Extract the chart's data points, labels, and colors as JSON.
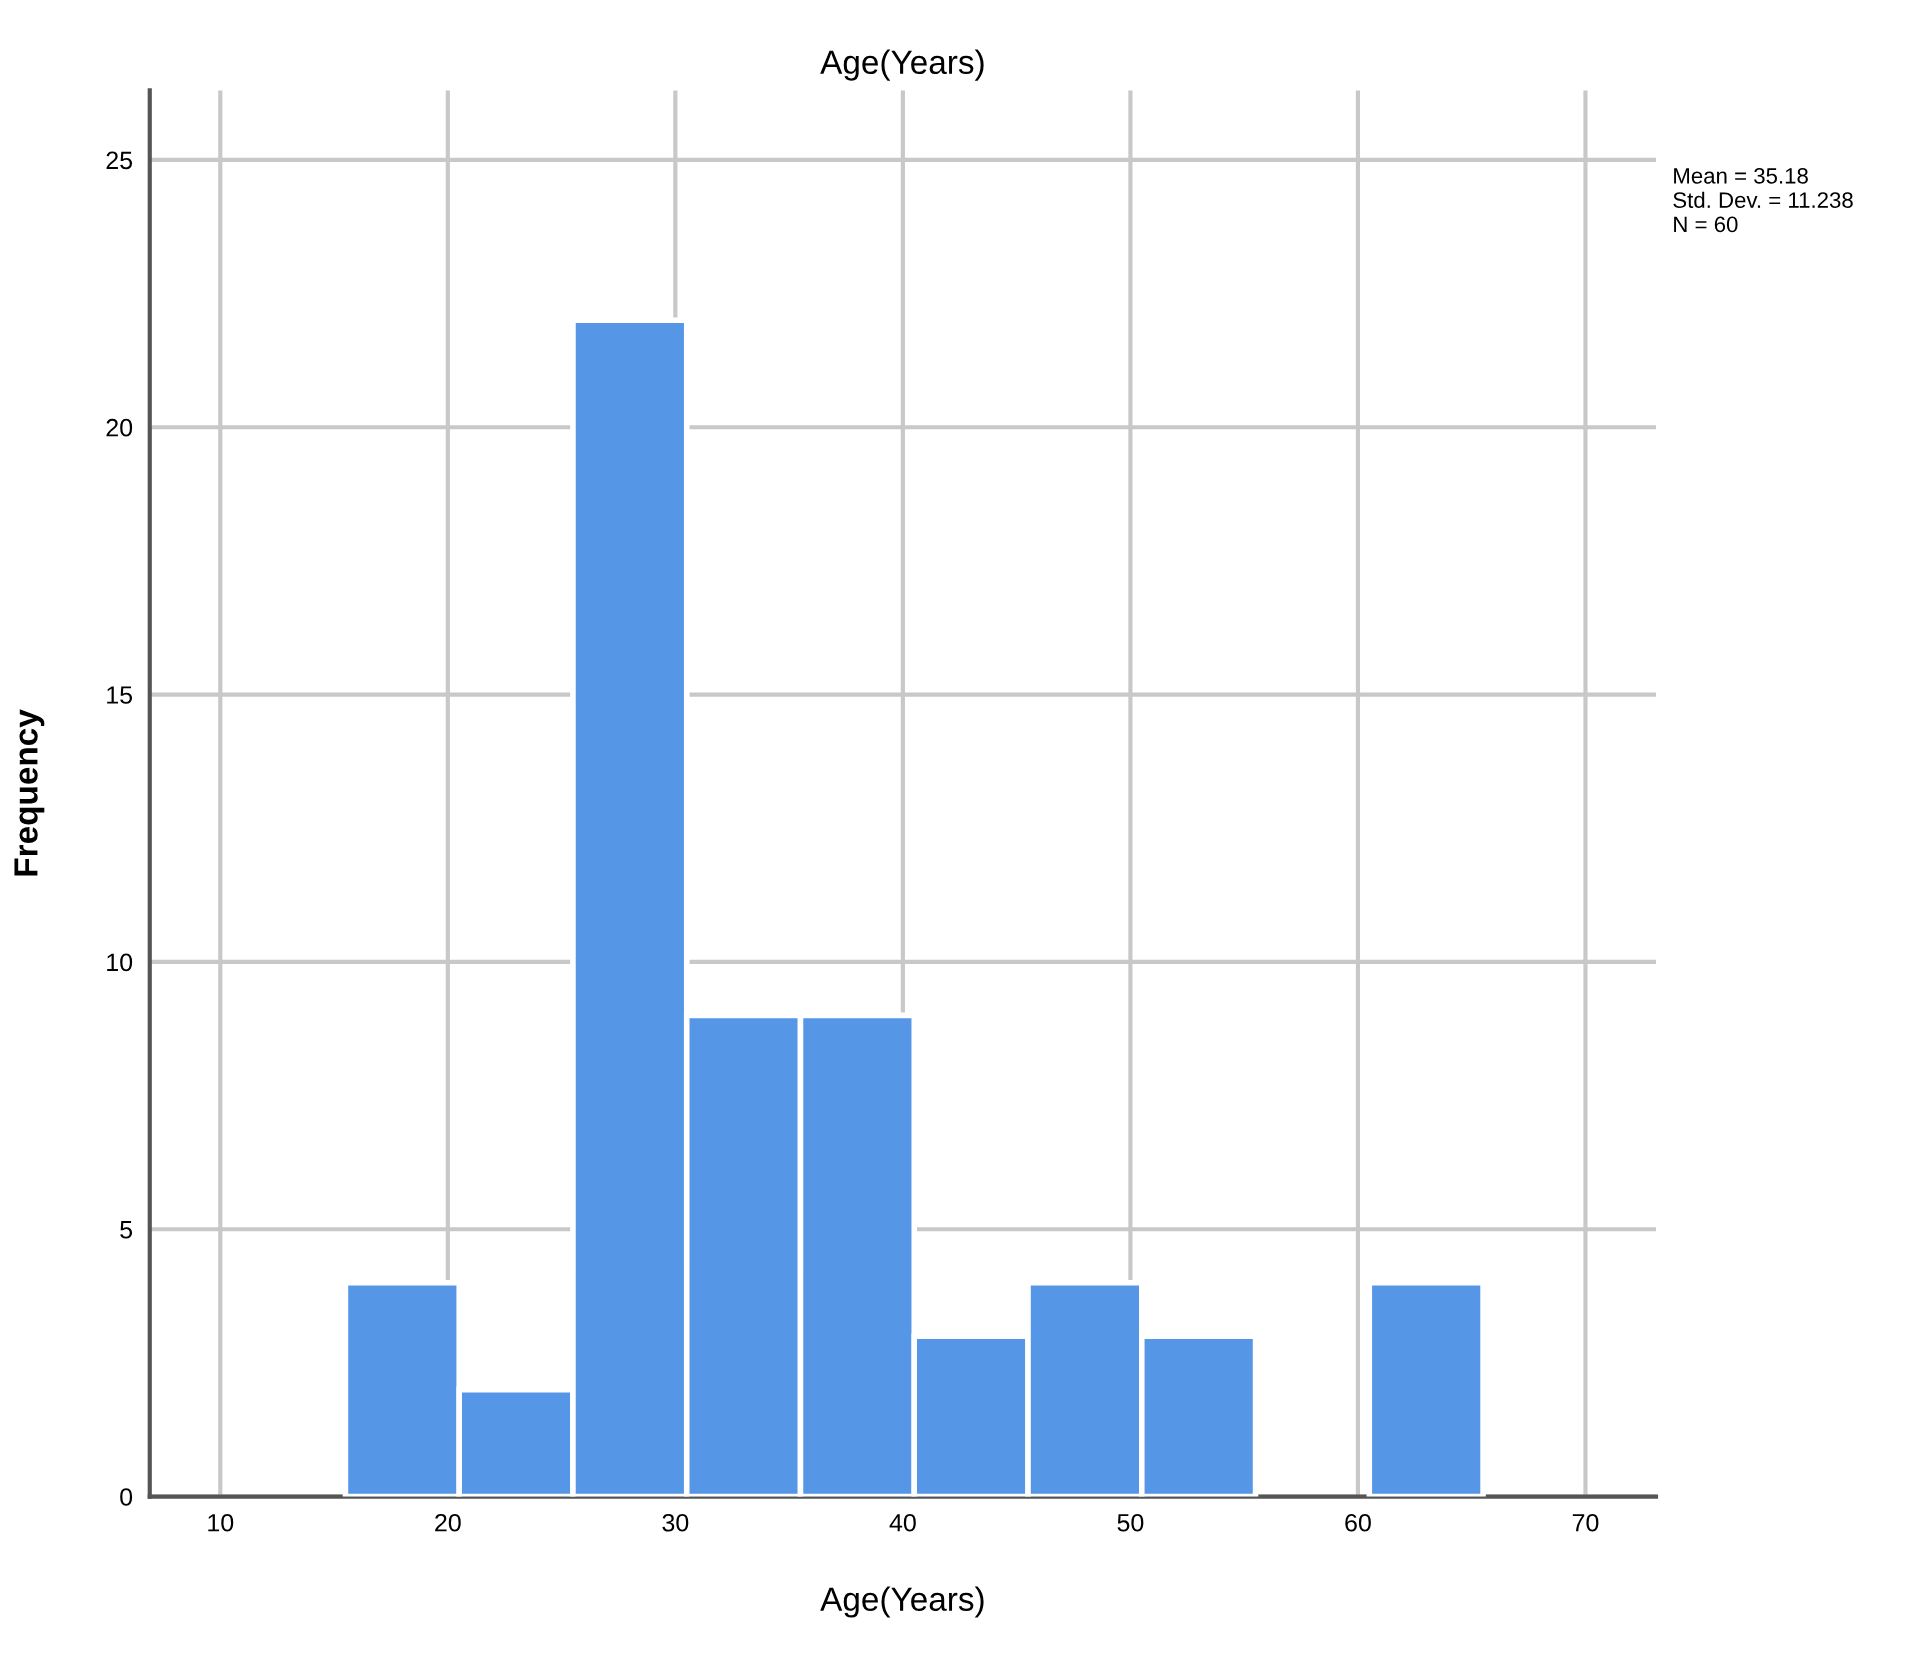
{
  "chart_data": {
    "type": "histogram",
    "title": "Age(Years)",
    "xlabel": "Age(Years)",
    "ylabel": "Frequency",
    "bins": [
      15.5,
      20.5,
      25.5,
      30.5,
      35.5,
      40.5,
      45.5,
      50.5,
      55.5,
      60.5,
      65.5
    ],
    "values": [
      4,
      2,
      22,
      9,
      9,
      3,
      4,
      3,
      0,
      4
    ],
    "color": "#5596e6",
    "xlim": [
      6.9,
      73.1
    ],
    "xticks": [
      10,
      20,
      30,
      40,
      50,
      60,
      70
    ],
    "ylim": [
      0,
      26.3
    ],
    "yticks": [
      0,
      5,
      10,
      15,
      20,
      25
    ],
    "grid": true,
    "annotations": [
      "Mean = 35.18",
      "Std. Dev. = 11.238",
      "N = 60"
    ]
  }
}
